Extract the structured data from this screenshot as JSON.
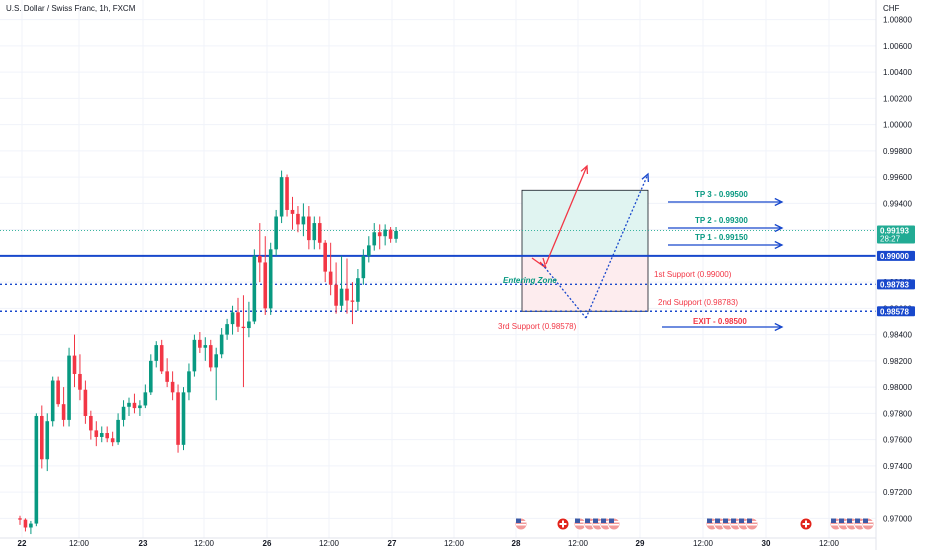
{
  "header": {
    "symbol_title": "U.S. Dollar / Swiss Franc, 1h, FXCM"
  },
  "chart_data": {
    "type": "candlestick",
    "symbol": "U.S. Dollar / Swiss Franc",
    "interval": "1h",
    "source": "FXCM",
    "currency": "CHF",
    "ylim": [
      0.9685,
      1.0095
    ],
    "y_ticks": [
      "1.00800",
      "1.00600",
      "1.00400",
      "1.00200",
      "1.00000",
      "0.99800",
      "0.99600",
      "0.99400",
      "0.99200",
      "0.99000",
      "0.98800",
      "0.98600",
      "0.98400",
      "0.98200",
      "0.98000",
      "0.97800",
      "0.97600",
      "0.97400",
      "0.97200",
      "0.97000"
    ],
    "x_ticks": [
      "22",
      "12:00",
      "23",
      "12:00",
      "26",
      "12:00",
      "27",
      "12:00",
      "28",
      "12:00",
      "29",
      "12:00",
      "30",
      "12:00"
    ],
    "price_badges": [
      {
        "value": "0.99193",
        "extra": "28:27",
        "kind": "current",
        "color": "#22ab94"
      },
      {
        "value": "0.99000",
        "kind": "level",
        "color": "#1848cc"
      },
      {
        "value": "0.98783",
        "kind": "level",
        "color": "#1848cc"
      },
      {
        "value": "0.98578",
        "kind": "level",
        "color": "#1848cc"
      }
    ],
    "levels": [
      {
        "value": 0.99,
        "style": "solid",
        "label": "1st Support (0.99000)",
        "label_color": "#f23645"
      },
      {
        "value": 0.98783,
        "style": "dotted",
        "label": "2nd Support (0.98783)",
        "label_color": "#f23645"
      },
      {
        "value": 0.98578,
        "style": "dotted",
        "label": "3rd Support (0.98578)",
        "label_color": "#f23645"
      }
    ],
    "annotations": {
      "entering_zone": "Entering Zone",
      "take_profits": [
        {
          "label": "TP 3 - 0.99500",
          "color": "#089981"
        },
        {
          "label": "TP 2 - 0.99300",
          "color": "#089981"
        },
        {
          "label": "TP 1 - 0.99150",
          "color": "#089981"
        }
      ],
      "exit": {
        "label": "EXIT - 0.98500",
        "color": "#f23645"
      }
    },
    "colors": {
      "up": "#089981",
      "down": "#f23645",
      "lines": "#1848cc"
    },
    "candles": [
      [
        0.97,
        0.9702,
        0.9695,
        0.9699
      ],
      [
        0.9699,
        0.97,
        0.969,
        0.9693
      ],
      [
        0.9693,
        0.9698,
        0.9688,
        0.9696
      ],
      [
        0.9696,
        0.978,
        0.9694,
        0.9778
      ],
      [
        0.9778,
        0.9786,
        0.9738,
        0.9745
      ],
      [
        0.9745,
        0.978,
        0.9736,
        0.9774
      ],
      [
        0.9774,
        0.9808,
        0.977,
        0.9805
      ],
      [
        0.9805,
        0.9808,
        0.9785,
        0.9787
      ],
      [
        0.9787,
        0.98,
        0.977,
        0.9775
      ],
      [
        0.9775,
        0.983,
        0.977,
        0.9824
      ],
      [
        0.9824,
        0.984,
        0.98,
        0.981
      ],
      [
        0.981,
        0.9825,
        0.979,
        0.9798
      ],
      [
        0.9798,
        0.9805,
        0.9772,
        0.9778
      ],
      [
        0.9778,
        0.9782,
        0.976,
        0.9767
      ],
      [
        0.9767,
        0.9774,
        0.9755,
        0.9762
      ],
      [
        0.9762,
        0.977,
        0.9758,
        0.9765
      ],
      [
        0.9765,
        0.977,
        0.9758,
        0.9761
      ],
      [
        0.9761,
        0.9766,
        0.9755,
        0.9758
      ],
      [
        0.9758,
        0.978,
        0.9756,
        0.9775
      ],
      [
        0.9775,
        0.979,
        0.977,
        0.9785
      ],
      [
        0.9785,
        0.9792,
        0.9778,
        0.9788
      ],
      [
        0.9788,
        0.9795,
        0.978,
        0.9784
      ],
      [
        0.9784,
        0.979,
        0.9778,
        0.9786
      ],
      [
        0.9786,
        0.9802,
        0.9784,
        0.9796
      ],
      [
        0.9796,
        0.9825,
        0.9794,
        0.982
      ],
      [
        0.982,
        0.9835,
        0.9815,
        0.9832
      ],
      [
        0.9832,
        0.9836,
        0.981,
        0.9812
      ],
      [
        0.9812,
        0.9822,
        0.98,
        0.9804
      ],
      [
        0.9804,
        0.9812,
        0.979,
        0.9796
      ],
      [
        0.9796,
        0.9802,
        0.975,
        0.9756
      ],
      [
        0.9756,
        0.98,
        0.9752,
        0.9796
      ],
      [
        0.9796,
        0.9818,
        0.979,
        0.9812
      ],
      [
        0.9812,
        0.984,
        0.9808,
        0.9836
      ],
      [
        0.9836,
        0.9842,
        0.9826,
        0.983
      ],
      [
        0.983,
        0.9838,
        0.982,
        0.9832
      ],
      [
        0.9832,
        0.9836,
        0.9812,
        0.9815
      ],
      [
        0.9815,
        0.983,
        0.979,
        0.9825
      ],
      [
        0.9825,
        0.9845,
        0.9822,
        0.984
      ],
      [
        0.984,
        0.9852,
        0.9836,
        0.9848
      ],
      [
        0.9848,
        0.9862,
        0.984,
        0.9857
      ],
      [
        0.9857,
        0.9868,
        0.9842,
        0.9846
      ],
      [
        0.9846,
        0.987,
        0.98,
        0.9845
      ],
      [
        0.9845,
        0.9865,
        0.9838,
        0.985
      ],
      [
        0.985,
        0.9905,
        0.9848,
        0.99
      ],
      [
        0.99,
        0.9925,
        0.988,
        0.9895
      ],
      [
        0.9895,
        0.9915,
        0.9855,
        0.986
      ],
      [
        0.986,
        0.991,
        0.9855,
        0.9905
      ],
      [
        0.9905,
        0.9935,
        0.99,
        0.993
      ],
      [
        0.993,
        0.9965,
        0.9925,
        0.996
      ],
      [
        0.996,
        0.9962,
        0.993,
        0.9935
      ],
      [
        0.9935,
        0.9945,
        0.992,
        0.9932
      ],
      [
        0.9932,
        0.9938,
        0.9918,
        0.9924
      ],
      [
        0.9924,
        0.994,
        0.9915,
        0.993
      ],
      [
        0.993,
        0.9938,
        0.9905,
        0.9912
      ],
      [
        0.9912,
        0.993,
        0.9905,
        0.9925
      ],
      [
        0.9925,
        0.993,
        0.9905,
        0.991
      ],
      [
        0.991,
        0.9912,
        0.988,
        0.9888
      ],
      [
        0.9888,
        0.991,
        0.987,
        0.9878
      ],
      [
        0.9878,
        0.9895,
        0.9856,
        0.9862
      ],
      [
        0.9862,
        0.99,
        0.9858,
        0.9875
      ],
      [
        0.9875,
        0.9898,
        0.9856,
        0.9866
      ],
      [
        0.9866,
        0.988,
        0.9848,
        0.9865
      ],
      [
        0.9865,
        0.989,
        0.9858,
        0.9883
      ],
      [
        0.9883,
        0.9905,
        0.9878,
        0.99
      ],
      [
        0.99,
        0.9915,
        0.9895,
        0.9908
      ],
      [
        0.9908,
        0.9925,
        0.9904,
        0.9918
      ],
      [
        0.9918,
        0.9924,
        0.9905,
        0.9915
      ],
      [
        0.9915,
        0.9924,
        0.9908,
        0.992
      ],
      [
        0.992,
        0.9922,
        0.991,
        0.9913
      ],
      [
        0.9913,
        0.9922,
        0.991,
        0.9919
      ]
    ]
  }
}
